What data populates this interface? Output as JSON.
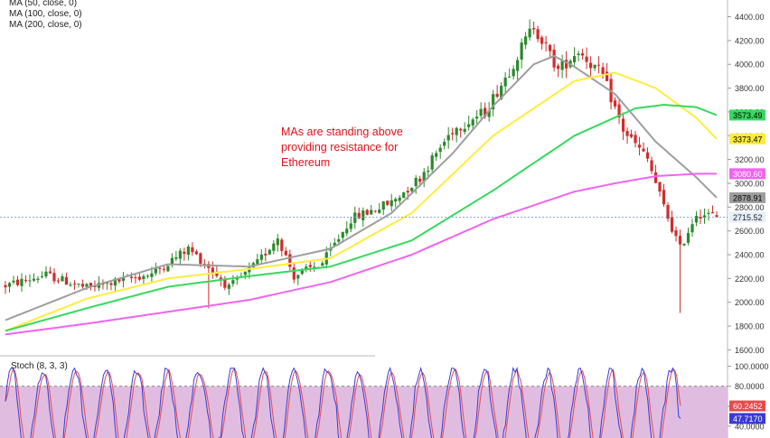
{
  "chart_data": [
    {
      "type": "candlestick",
      "title": "",
      "indicators": [
        "MA (50, close, 0)",
        "MA (100, close, 0)",
        "MA (200, close, 0)"
      ],
      "annotation": [
        "MAs are standing above",
        "providing resistance for",
        "Ethereum"
      ],
      "ylim": [
        1550,
        4480
      ],
      "y_ticks": [
        1600,
        1800,
        2000,
        2200,
        2400,
        2600,
        2800,
        3000,
        3200,
        3400,
        3600,
        3800,
        4000,
        4200,
        4400
      ],
      "tick_labels": [
        "1600.00",
        "1800.00",
        "2000.00",
        "2200.00",
        "2400.00",
        "2600.00",
        "2800.00",
        "3000.00",
        "3200.00",
        "3400.00",
        "3600.00",
        "3800.00",
        "4000.00",
        "4200.00",
        "4400.00"
      ],
      "price_keypoints": [
        [
          0,
          2140
        ],
        [
          10,
          2230
        ],
        [
          20,
          2120
        ],
        [
          28,
          2180
        ],
        [
          36,
          2240
        ],
        [
          45,
          2450
        ],
        [
          50,
          2300
        ],
        [
          55,
          2120
        ],
        [
          62,
          2330
        ],
        [
          67,
          2550
        ],
        [
          71,
          2220
        ],
        [
          78,
          2330
        ],
        [
          85,
          2700
        ],
        [
          95,
          2840
        ],
        [
          102,
          3050
        ],
        [
          110,
          3450
        ],
        [
          118,
          3600
        ],
        [
          124,
          3950
        ],
        [
          130,
          4330
        ],
        [
          136,
          3950
        ],
        [
          141,
          4120
        ],
        [
          147,
          3900
        ],
        [
          152,
          3450
        ],
        [
          158,
          3200
        ],
        [
          162,
          2800
        ],
        [
          166,
          2450
        ],
        [
          170,
          2750
        ],
        [
          175,
          2720
        ]
      ],
      "moving_averages": [
        {
          "name": "MA (50, close, 0)",
          "color": "#9e9e9e",
          "last_value": 2878.91,
          "points": [
            [
              0,
              1850
            ],
            [
              20,
              2120
            ],
            [
              40,
              2320
            ],
            [
              60,
              2300
            ],
            [
              80,
              2450
            ],
            [
              95,
              2750
            ],
            [
              110,
              3250
            ],
            [
              120,
              3650
            ],
            [
              130,
              4000
            ],
            [
              135,
              4070
            ],
            [
              140,
              3980
            ],
            [
              150,
              3750
            ],
            [
              160,
              3350
            ],
            [
              170,
              3050
            ],
            [
              175,
              2879
            ]
          ]
        },
        {
          "name": "MA (100, close, 0)",
          "color": "#ffec3d",
          "last_value": 3373.47,
          "points": [
            [
              0,
              1760
            ],
            [
              20,
              2030
            ],
            [
              40,
              2200
            ],
            [
              60,
              2280
            ],
            [
              80,
              2370
            ],
            [
              100,
              2750
            ],
            [
              120,
              3400
            ],
            [
              140,
              3860
            ],
            [
              150,
              3930
            ],
            [
              160,
              3800
            ],
            [
              170,
              3550
            ],
            [
              175,
              3373
            ]
          ]
        },
        {
          "name": "MA (200, close, 0)",
          "color": "#36d95e",
          "last_value": 3573.49,
          "points": [
            [
              0,
              1760
            ],
            [
              20,
              1950
            ],
            [
              40,
              2130
            ],
            [
              60,
              2220
            ],
            [
              80,
              2300
            ],
            [
              100,
              2520
            ],
            [
              120,
              2940
            ],
            [
              140,
              3400
            ],
            [
              155,
              3630
            ],
            [
              162,
              3660
            ],
            [
              170,
              3640
            ],
            [
              175,
              3573
            ]
          ]
        },
        {
          "name": "",
          "color": "#f064f0",
          "last_value": 3080.6,
          "points": [
            [
              0,
              1730
            ],
            [
              20,
              1820
            ],
            [
              40,
              1920
            ],
            [
              60,
              2020
            ],
            [
              80,
              2170
            ],
            [
              100,
              2400
            ],
            [
              120,
              2700
            ],
            [
              140,
              2930
            ],
            [
              150,
              3000
            ],
            [
              160,
              3060
            ],
            [
              170,
              3080
            ],
            [
              175,
              3080
            ]
          ]
        }
      ],
      "current_price": 2715.52
    },
    {
      "type": "line",
      "title": "Stoch (8, 3, 3)",
      "ylim": [
        30,
        105
      ],
      "y_ticks": [
        40,
        60,
        80,
        100
      ],
      "tick_labels": [
        "40.0000",
        "60.0000",
        "80.0000",
        "100.0000"
      ],
      "band": [
        20,
        80
      ],
      "series": [
        {
          "name": "",
          "color": "#3a3ad8",
          "last_value": 47.717
        },
        {
          "name": "",
          "color": "#e84a4a",
          "last_value": 60.2452
        }
      ],
      "value_labels": [
        "60.2452",
        "47.7170"
      ]
    }
  ]
}
